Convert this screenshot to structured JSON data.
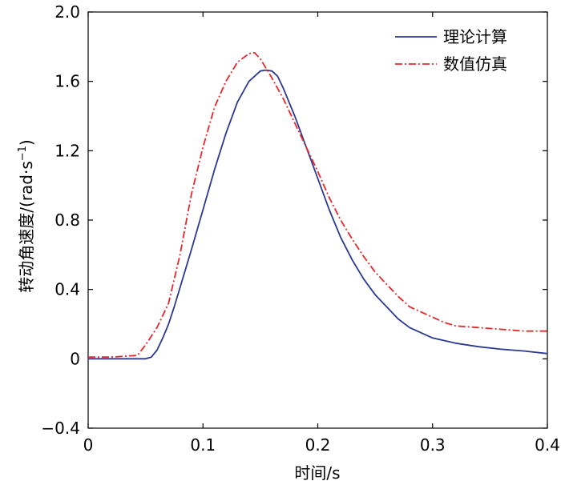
{
  "chart_data": {
    "type": "line",
    "xlabel": "时间/s",
    "ylabel_main": "转动角速度/(rad·s",
    "ylabel_sup": "−1",
    "ylabel_end": ")",
    "xlim": [
      0,
      0.4
    ],
    "ylim": [
      -0.4,
      2.0
    ],
    "x_ticks": [
      0,
      0.1,
      0.2,
      0.3,
      0.4
    ],
    "x_tick_labels": [
      "0",
      "0.1",
      "0.2",
      "0.3",
      "0.4"
    ],
    "y_ticks": [
      -0.4,
      0,
      0.4,
      0.8,
      1.2,
      1.6,
      2.0
    ],
    "y_tick_labels": [
      "−0.4",
      "0",
      "0.4",
      "0.8",
      "1.2",
      "1.6",
      "2.0"
    ],
    "grid": false,
    "legend_position": "top-right",
    "series": [
      {
        "name": "理论计算",
        "color": "#2b3990",
        "dash": "solid",
        "points": [
          [
            0,
            0
          ],
          [
            0.05,
            0
          ],
          [
            0.055,
            0.01
          ],
          [
            0.06,
            0.05
          ],
          [
            0.065,
            0.12
          ],
          [
            0.07,
            0.2
          ],
          [
            0.075,
            0.3
          ],
          [
            0.08,
            0.41
          ],
          [
            0.09,
            0.63
          ],
          [
            0.1,
            0.86
          ],
          [
            0.11,
            1.09
          ],
          [
            0.12,
            1.3
          ],
          [
            0.13,
            1.48
          ],
          [
            0.14,
            1.6
          ],
          [
            0.15,
            1.66
          ],
          [
            0.155,
            1.665
          ],
          [
            0.16,
            1.66
          ],
          [
            0.165,
            1.63
          ],
          [
            0.17,
            1.56
          ],
          [
            0.18,
            1.4
          ],
          [
            0.19,
            1.22
          ],
          [
            0.2,
            1.04
          ],
          [
            0.21,
            0.86
          ],
          [
            0.22,
            0.7
          ],
          [
            0.23,
            0.57
          ],
          [
            0.24,
            0.46
          ],
          [
            0.25,
            0.37
          ],
          [
            0.26,
            0.3
          ],
          [
            0.27,
            0.23
          ],
          [
            0.28,
            0.18
          ],
          [
            0.29,
            0.15
          ],
          [
            0.3,
            0.12
          ],
          [
            0.32,
            0.09
          ],
          [
            0.34,
            0.07
          ],
          [
            0.36,
            0.055
          ],
          [
            0.38,
            0.045
          ],
          [
            0.4,
            0.03
          ]
        ]
      },
      {
        "name": "数值仿真",
        "color": "#e8272a",
        "dash": "dashdot",
        "points": [
          [
            0,
            0.01
          ],
          [
            0.02,
            0.01
          ],
          [
            0.043,
            0.02
          ],
          [
            0.05,
            0.08
          ],
          [
            0.06,
            0.18
          ],
          [
            0.07,
            0.32
          ],
          [
            0.08,
            0.6
          ],
          [
            0.09,
            0.95
          ],
          [
            0.1,
            1.22
          ],
          [
            0.11,
            1.45
          ],
          [
            0.12,
            1.6
          ],
          [
            0.13,
            1.71
          ],
          [
            0.14,
            1.76
          ],
          [
            0.145,
            1.765
          ],
          [
            0.15,
            1.73
          ],
          [
            0.16,
            1.62
          ],
          [
            0.17,
            1.5
          ],
          [
            0.18,
            1.36
          ],
          [
            0.19,
            1.22
          ],
          [
            0.2,
            1.08
          ],
          [
            0.21,
            0.93
          ],
          [
            0.22,
            0.8
          ],
          [
            0.23,
            0.69
          ],
          [
            0.24,
            0.59
          ],
          [
            0.25,
            0.5
          ],
          [
            0.26,
            0.43
          ],
          [
            0.27,
            0.36
          ],
          [
            0.28,
            0.3
          ],
          [
            0.29,
            0.27
          ],
          [
            0.3,
            0.24
          ],
          [
            0.31,
            0.21
          ],
          [
            0.32,
            0.19
          ],
          [
            0.34,
            0.18
          ],
          [
            0.36,
            0.17
          ],
          [
            0.38,
            0.16
          ],
          [
            0.4,
            0.16
          ]
        ]
      }
    ]
  }
}
